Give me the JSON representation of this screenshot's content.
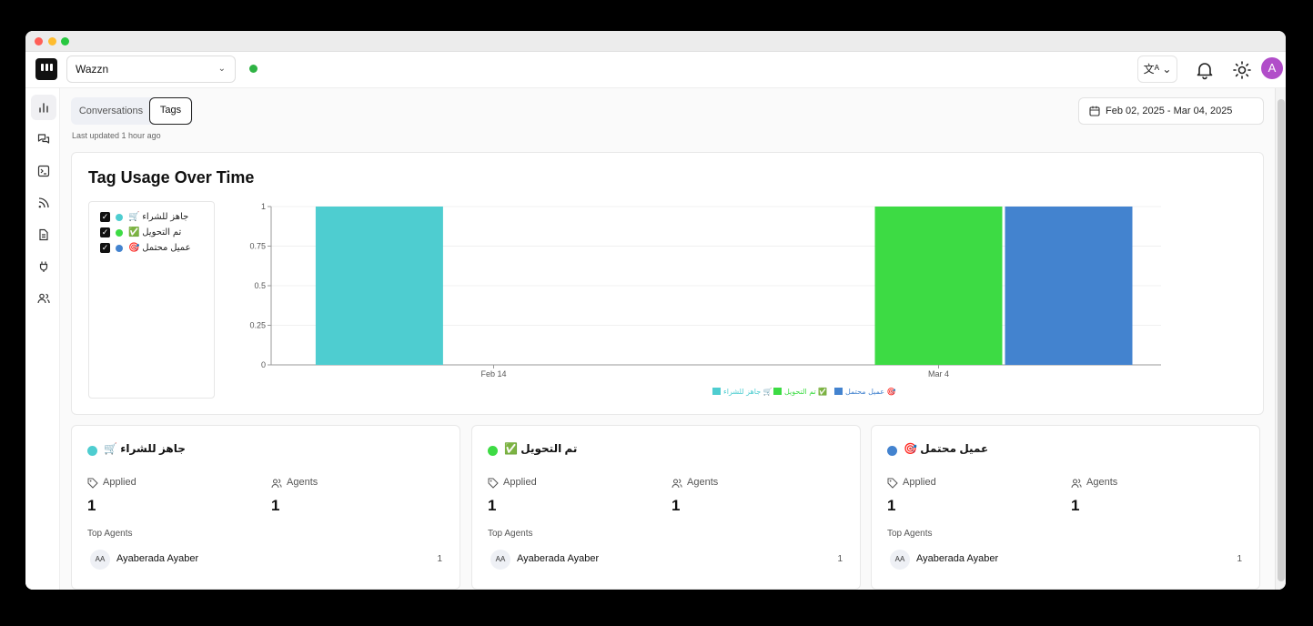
{
  "topbar": {
    "workspace": "Wazzn",
    "avatar_letter": "A"
  },
  "tabs": {
    "conversations": "Conversations",
    "tags": "Tags"
  },
  "last_updated": "Last updated 1 hour ago",
  "date_range": "Feb 02, 2025 - Mar 04, 2025",
  "chart_title": "Tag Usage Over Time",
  "legend_items": [
    {
      "label": "جاهز للشراء 🛒",
      "color": "#4ecdd0",
      "checked": true
    },
    {
      "label": "تم التحويل ✅",
      "color": "#3ddb44",
      "checked": true
    },
    {
      "label": "عميل محتمل 🎯",
      "color": "#4383cf",
      "checked": true
    }
  ],
  "chart_data": {
    "type": "bar",
    "title": "Tag Usage Over Time",
    "xlabel": "",
    "ylabel": "",
    "ylim": [
      0,
      1
    ],
    "yticks": [
      "0",
      "0.25",
      "0.5",
      "0.75",
      "1"
    ],
    "categories": [
      "Feb 14",
      "Mar 4"
    ],
    "series": [
      {
        "name": "جاهز للشراء 🛒",
        "color": "#4ecdd0",
        "values": [
          1,
          0
        ]
      },
      {
        "name": "تم التحويل ✅",
        "color": "#3ddb44",
        "values": [
          0,
          1
        ]
      },
      {
        "name": "عميل محتمل 🎯",
        "color": "#4383cf",
        "values": [
          0,
          1
        ]
      }
    ],
    "grid": true,
    "legend": "bottom"
  },
  "tag_cards": [
    {
      "title": "جاهز للشراء 🛒",
      "color": "#4ecdd0",
      "applied_label": "Applied",
      "applied": "1",
      "agents_label": "Agents",
      "agents": "1",
      "top_agents_label": "Top Agents",
      "agent_initials": "AA",
      "agent_name": "Ayaberada Ayaber",
      "agent_count": "1"
    },
    {
      "title": "تم التحويل ✅",
      "color": "#3ddb44",
      "applied_label": "Applied",
      "applied": "1",
      "agents_label": "Agents",
      "agents": "1",
      "top_agents_label": "Top Agents",
      "agent_initials": "AA",
      "agent_name": "Ayaberada Ayaber",
      "agent_count": "1"
    },
    {
      "title": "عميل محتمل 🎯",
      "color": "#4383cf",
      "applied_label": "Applied",
      "applied": "1",
      "agents_label": "Agents",
      "agents": "1",
      "top_agents_label": "Top Agents",
      "agent_initials": "AA",
      "agent_name": "Ayaberada Ayaber",
      "agent_count": "1"
    }
  ]
}
